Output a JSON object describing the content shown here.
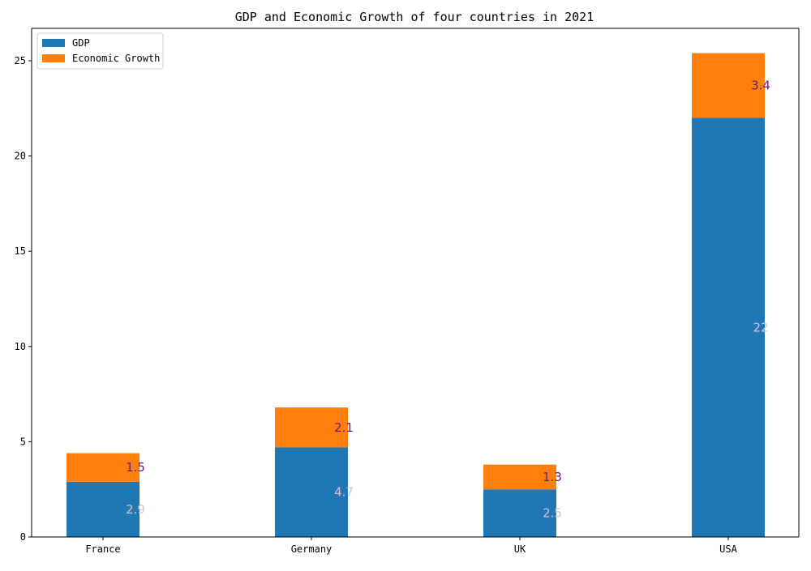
{
  "chart_data": {
    "type": "bar",
    "stacked": true,
    "title": "GDP and Economic Growth of four countries in 2021",
    "xlabel": "",
    "ylabel": "",
    "categories": [
      "France",
      "Germany",
      "UK",
      "USA"
    ],
    "series": [
      {
        "name": "GDP",
        "values": [
          2.9,
          4.7,
          2.5,
          22
        ],
        "color": "#1f77b4",
        "label_color": "#d6c3d6"
      },
      {
        "name": "Economic Growth",
        "values": [
          1.5,
          2.1,
          1.3,
          3.4
        ],
        "color": "#ff7f0e",
        "label_color": "#6a1b7a"
      }
    ],
    "data_labels": {
      "GDP": [
        "2.9",
        "4.7",
        "2.5",
        "22"
      ],
      "Economic Growth": [
        "1.5",
        "2.1",
        "1.3",
        "3.4"
      ]
    },
    "ylim": [
      0,
      26.7
    ],
    "yticks": [
      0,
      5,
      10,
      15,
      20,
      25
    ],
    "grid": false,
    "legend_position": "top-left"
  }
}
